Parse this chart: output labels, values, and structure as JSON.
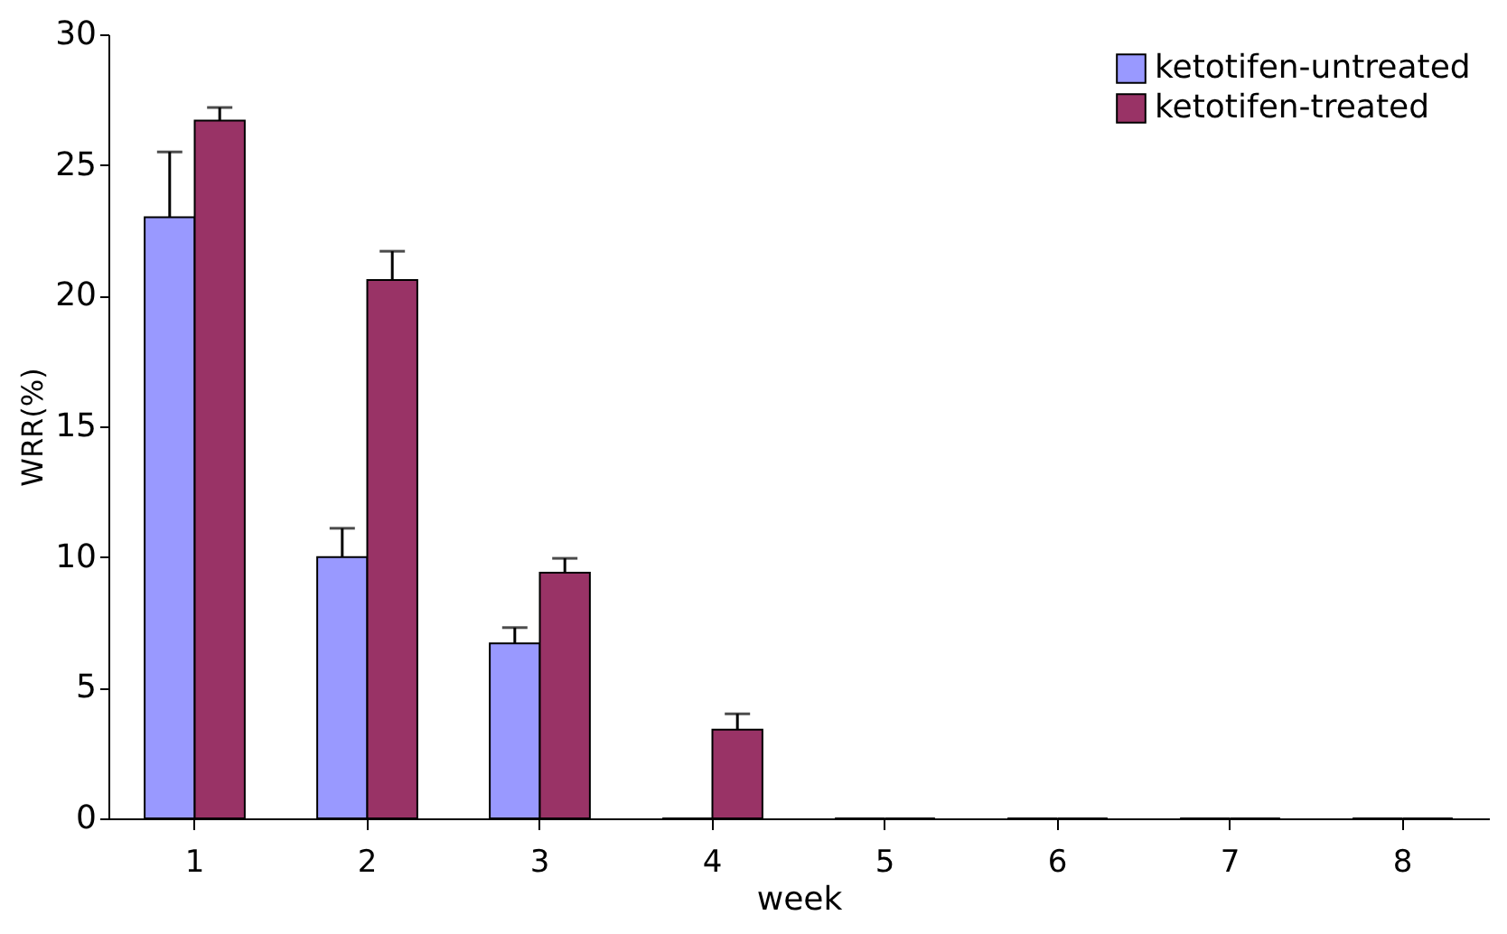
{
  "chart_data": {
    "type": "bar",
    "xlabel": "week",
    "ylabel": "WRR(%)",
    "categories": [
      "1",
      "2",
      "3",
      "4",
      "5",
      "6",
      "7",
      "8"
    ],
    "series": [
      {
        "name": "ketotifen-untreated",
        "color": "#9999ff",
        "values": [
          23,
          10,
          6.7,
          0,
          0,
          0,
          0,
          0
        ],
        "errors": [
          [
            23,
            25.5
          ],
          [
            10,
            11.1
          ],
          [
            6.7,
            7.3
          ],
          null,
          null,
          null,
          null,
          null
        ]
      },
      {
        "name": "ketotifen-treated",
        "color": "#993366",
        "values": [
          26.7,
          20.6,
          9.4,
          3.4,
          0,
          0,
          0,
          0
        ],
        "errors": [
          [
            26.7,
            27.2
          ],
          [
            20.6,
            21.7
          ],
          [
            9.4,
            9.95
          ],
          [
            3.4,
            4.0
          ],
          null,
          null,
          null,
          null
        ]
      }
    ],
    "ylim": [
      0,
      30
    ],
    "yticks": [
      0,
      5,
      10,
      15,
      20,
      25,
      30
    ],
    "legend": "top right",
    "grid": false
  }
}
